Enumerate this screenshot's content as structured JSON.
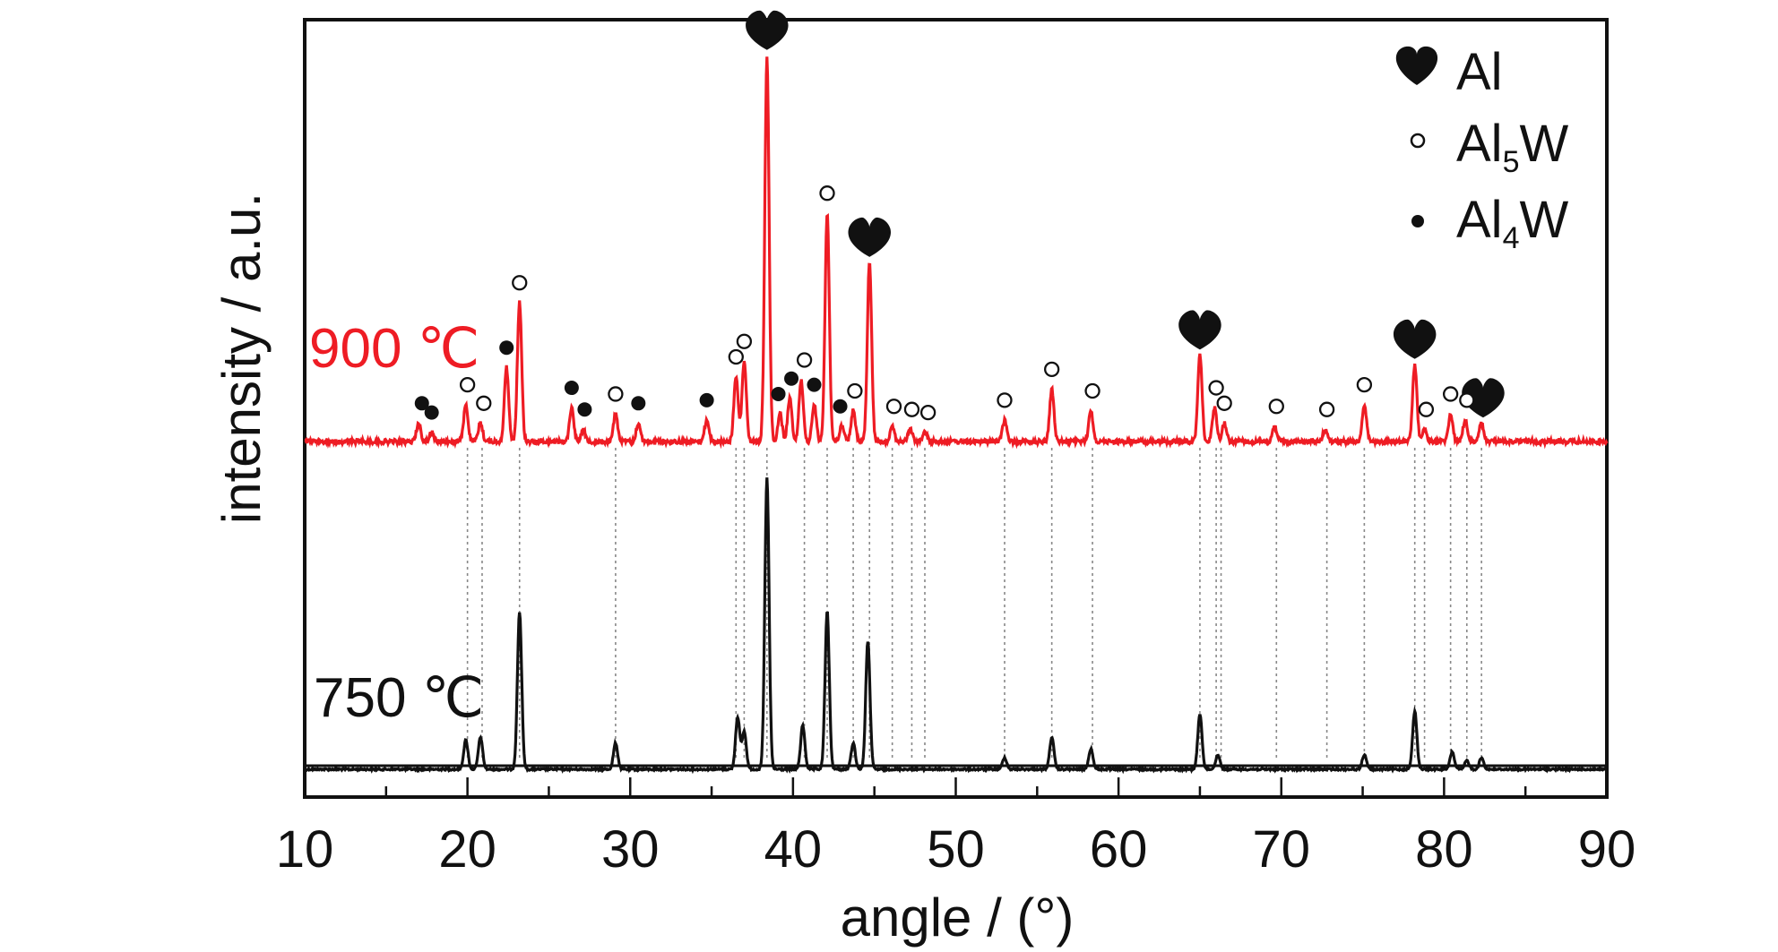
{
  "chart_data": {
    "type": "line",
    "title": "",
    "xlabel": "angle / (°)",
    "ylabel": "intensity / a.u.",
    "xlim": [
      10,
      90
    ],
    "xticks": [
      "10",
      "20",
      "30",
      "40",
      "50",
      "60",
      "70",
      "80",
      "90"
    ],
    "grid": false,
    "legend_position": "top-right",
    "legend": [
      {
        "marker": "heart-icon",
        "label": "Al",
        "sub": ""
      },
      {
        "marker": "open-circle-icon",
        "label": "Al",
        "sub": "5",
        "suffix": "W"
      },
      {
        "marker": "filled-circle-icon",
        "label": "Al",
        "sub": "4",
        "suffix": "W"
      }
    ],
    "series": [
      {
        "name": "900 ℃",
        "color": "#ee1c24",
        "peaks": [
          [
            17.0,
            0.06
          ],
          [
            17.8,
            0.03
          ],
          [
            19.9,
            0.12
          ],
          [
            20.8,
            0.06
          ],
          [
            22.4,
            0.24
          ],
          [
            23.2,
            0.45
          ],
          [
            26.4,
            0.11
          ],
          [
            27.1,
            0.04
          ],
          [
            29.1,
            0.09
          ],
          [
            30.5,
            0.06
          ],
          [
            34.7,
            0.07
          ],
          [
            36.5,
            0.21
          ],
          [
            37.0,
            0.26
          ],
          [
            38.4,
            1.25
          ],
          [
            39.2,
            0.09
          ],
          [
            39.8,
            0.14
          ],
          [
            40.5,
            0.2
          ],
          [
            41.3,
            0.12
          ],
          [
            42.1,
            0.74
          ],
          [
            43.0,
            0.05
          ],
          [
            43.7,
            0.1
          ],
          [
            44.7,
            0.58
          ],
          [
            46.1,
            0.05
          ],
          [
            47.2,
            0.04
          ],
          [
            48.1,
            0.03
          ],
          [
            53.0,
            0.07
          ],
          [
            55.9,
            0.17
          ],
          [
            58.3,
            0.1
          ],
          [
            65.0,
            0.28
          ],
          [
            65.9,
            0.11
          ],
          [
            66.5,
            0.06
          ],
          [
            69.6,
            0.05
          ],
          [
            72.7,
            0.04
          ],
          [
            75.1,
            0.12
          ],
          [
            78.2,
            0.25
          ],
          [
            78.8,
            0.04
          ],
          [
            80.4,
            0.09
          ],
          [
            81.3,
            0.07
          ],
          [
            82.3,
            0.06
          ]
        ]
      },
      {
        "name": "750 ℃",
        "color": "#111111",
        "peaks": [
          [
            19.9,
            0.1
          ],
          [
            20.8,
            0.11
          ],
          [
            23.2,
            0.54
          ],
          [
            29.1,
            0.09
          ],
          [
            36.6,
            0.18
          ],
          [
            37.0,
            0.13
          ],
          [
            38.4,
            1.0
          ],
          [
            40.6,
            0.15
          ],
          [
            42.1,
            0.54
          ],
          [
            43.7,
            0.09
          ],
          [
            44.6,
            0.44
          ],
          [
            53.0,
            0.04
          ],
          [
            55.9,
            0.11
          ],
          [
            58.3,
            0.07
          ],
          [
            65.0,
            0.19
          ],
          [
            66.1,
            0.05
          ],
          [
            75.1,
            0.05
          ],
          [
            78.2,
            0.2
          ],
          [
            80.5,
            0.06
          ],
          [
            81.4,
            0.03
          ],
          [
            82.3,
            0.04
          ]
        ]
      }
    ],
    "markers": [
      {
        "phase": "Al",
        "x": [
          38.4,
          44.7,
          65.0,
          78.2,
          82.4
        ]
      },
      {
        "phase": "Al5W",
        "x": [
          20.0,
          21.0,
          23.2,
          29.1,
          36.5,
          37.0,
          40.7,
          42.1,
          43.8,
          46.2,
          47.3,
          48.3,
          53.0,
          55.9,
          58.4,
          66.0,
          66.5,
          69.7,
          72.8,
          75.1,
          78.9,
          80.4,
          81.4
        ]
      },
      {
        "phase": "Al4W",
        "x": [
          17.2,
          17.8,
          22.4,
          26.4,
          27.2,
          30.5,
          34.7,
          39.1,
          39.9,
          41.3,
          42.9
        ]
      }
    ],
    "guide_lines_x": [
      20.0,
      20.9,
      23.2,
      29.1,
      36.5,
      37.0,
      38.4,
      40.7,
      42.1,
      43.7,
      44.7,
      46.1,
      47.3,
      48.1,
      53.0,
      55.9,
      58.4,
      65.0,
      66.0,
      66.3,
      69.7,
      72.8,
      75.1,
      78.2,
      78.8,
      80.4,
      81.4,
      82.3
    ]
  }
}
